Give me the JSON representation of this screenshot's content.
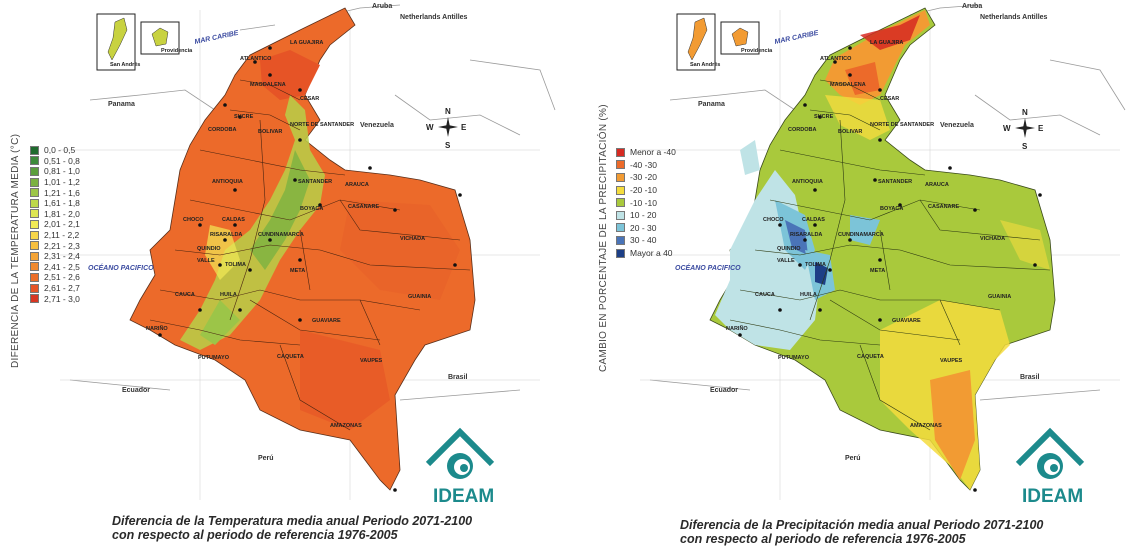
{
  "figure_left": {
    "axis_label": "DIFERENCIA DE LA TEMPERATURA MEDIA (°C)",
    "legend": [
      {
        "label": "0,0 - 0,5",
        "color": "#1f6b2e"
      },
      {
        "label": "0,51 - 0,8",
        "color": "#3d8b3a"
      },
      {
        "label": "0,81 - 1,0",
        "color": "#5b9e3c"
      },
      {
        "label": "1,01 - 1,2",
        "color": "#7bb241"
      },
      {
        "label": "1,21 - 1,6",
        "color": "#9cc548"
      },
      {
        "label": "1,61 - 1,8",
        "color": "#bdd84c"
      },
      {
        "label": "1,81 - 2,0",
        "color": "#dde652"
      },
      {
        "label": "2,01 - 2,1",
        "color": "#f2ea55"
      },
      {
        "label": "2,11 - 2,2",
        "color": "#f7d64a"
      },
      {
        "label": "2,21 - 2,3",
        "color": "#f6bf3f"
      },
      {
        "label": "2,31 - 2,4",
        "color": "#f4a436"
      },
      {
        "label": "2,41 - 2,5",
        "color": "#f08a2f"
      },
      {
        "label": "2,51 - 2,6",
        "color": "#ec6f2a"
      },
      {
        "label": "2,61 - 2,7",
        "color": "#e65426"
      },
      {
        "label": "2,71 - 3,0",
        "color": "#d83622"
      }
    ],
    "caption_line1": "Diferencia de la Temperatura media anual Periodo 2071-2100",
    "caption_line2": "con respecto al periodo de referencia 1976-2005",
    "fill_main": "#ec6a2a",
    "fill_highland": "#b8cf48"
  },
  "figure_right": {
    "axis_label": "CAMBIO EN PORCENTAJE DE LA PRECIPITACIÓN (%)",
    "legend": [
      {
        "label": "Menor a -40",
        "color": "#d62a22"
      },
      {
        "label": "-40 -30",
        "color": "#ec6a2a"
      },
      {
        "label": "-30 -20",
        "color": "#f29b33"
      },
      {
        "label": "-20 -10",
        "color": "#f4dc3d"
      },
      {
        "label": "-10 -10",
        "color": "#a9c93c"
      },
      {
        "label": "10 - 20",
        "color": "#bfe3e6"
      },
      {
        "label": "20 - 30",
        "color": "#7cc4d8"
      },
      {
        "label": "30 - 40",
        "color": "#4a74b8"
      },
      {
        "label": "Mayor a 40",
        "color": "#1d3f86"
      }
    ],
    "caption_line1": "Diferencia de la Precipitación media anual Periodo 2071-2100",
    "caption_line2": "con respecto al periodo de referencia 1976-2005",
    "fill_main": "#a9c93c"
  },
  "map_labels": {
    "aruba": "Aruba",
    "antilles": "Netherlands Antilles",
    "caribbean": "MAR CARIBE",
    "pacific": "OCÉANO PACIFICO",
    "venezuela": "Venezuela",
    "panama": "Panama",
    "ecuador": "Ecuador",
    "peru": "Perú",
    "brasil": "Brasil",
    "san_andres": "San Andrés",
    "providencia": "Providencia",
    "compass_n": "N",
    "compass_s": "S",
    "compass_e": "E",
    "compass_w": "W"
  },
  "departments": [
    "LA GUAJIRA",
    "ATLANTICO",
    "MAGDALENA",
    "CESAR",
    "SUCRE",
    "CORDOBA",
    "BOLIVAR",
    "NORTE DE SANTANDER",
    "ANTIOQUIA",
    "SANTANDER",
    "ARAUCA",
    "CASANARE",
    "BOYACA",
    "CHOCO",
    "CALDAS",
    "RISARALDA",
    "CUNDINAMARCA",
    "VICHADA",
    "VALLE",
    "TOLIMA",
    "QUINDIO",
    "META",
    "GUAINIA",
    "CAUCA",
    "HUILA",
    "NARIÑO",
    "GUAVIARE",
    "PUTUMAYO",
    "CAQUETA",
    "VAUPES",
    "AMAZONAS"
  ],
  "logo_text": "IDEAM"
}
